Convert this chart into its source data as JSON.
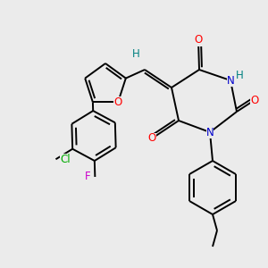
{
  "background_color": "#ebebeb",
  "atom_colors": {
    "O": "#ff0000",
    "N": "#0000cc",
    "H": "#008080",
    "Cl": "#00aa00",
    "F": "#cc00cc",
    "C": "#000000"
  },
  "lw": 1.4,
  "fontsize": 8.5
}
